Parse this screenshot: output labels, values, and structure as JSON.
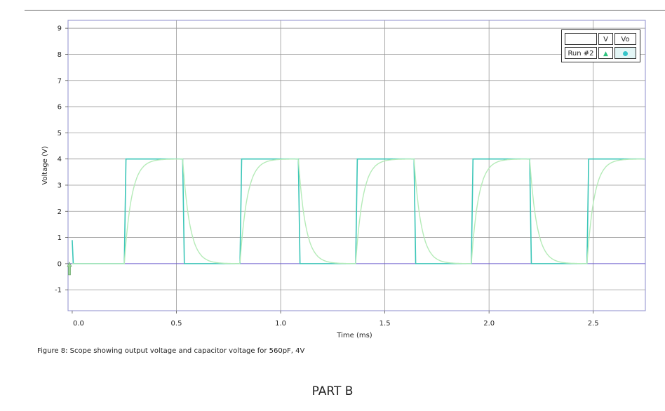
{
  "caption": "Figure 8: Scope showing output voltage and capacitor voltage for 560pF, 4V",
  "part_label": "PART B",
  "legend": {
    "header_empty": "",
    "col1": "V",
    "col2": "Vo",
    "run_label": "Run #2"
  },
  "colors": {
    "output": "#3cc6b8",
    "capacitor": "#b5ebb8",
    "zero_line": "#6a5acd",
    "grid": "#999999",
    "axis": "#8c8ccc"
  },
  "chart_data": {
    "type": "line",
    "xlabel": "Time (ms)",
    "ylabel": "Voltage (V)",
    "xlim": [
      -0.02,
      2.75
    ],
    "ylim": [
      -1.8,
      9.3
    ],
    "x_ticks": [
      0.0,
      0.5,
      1.0,
      1.5,
      2.0,
      2.5
    ],
    "x_tick_labels": [
      "0.0",
      "0.5",
      "1.0",
      "1.5",
      "2.0",
      "2.5"
    ],
    "y_ticks": [
      -1,
      0,
      1,
      2,
      3,
      4,
      5,
      6,
      7,
      8,
      9
    ],
    "y_tick_labels": [
      "-1",
      "0",
      "1",
      "2",
      "3",
      "4",
      "5",
      "6",
      "7",
      "8",
      "9"
    ],
    "grid": true,
    "legend_position": "top-right",
    "series": [
      {
        "name": "Vo",
        "kind": "square",
        "high": 4,
        "low": 0,
        "rising_edges": [
          0.25,
          0.805,
          1.36,
          1.915,
          2.47
        ],
        "falling_edges": [
          0.53,
          1.085,
          1.64,
          2.195
        ]
      },
      {
        "name": "V",
        "kind": "rc",
        "high": 4,
        "low": 0,
        "tau_ms": 0.035,
        "rising_edges": [
          0.25,
          0.805,
          1.36,
          1.915,
          2.47
        ],
        "falling_edges": [
          0.53,
          1.085,
          1.64,
          2.195
        ]
      }
    ]
  }
}
